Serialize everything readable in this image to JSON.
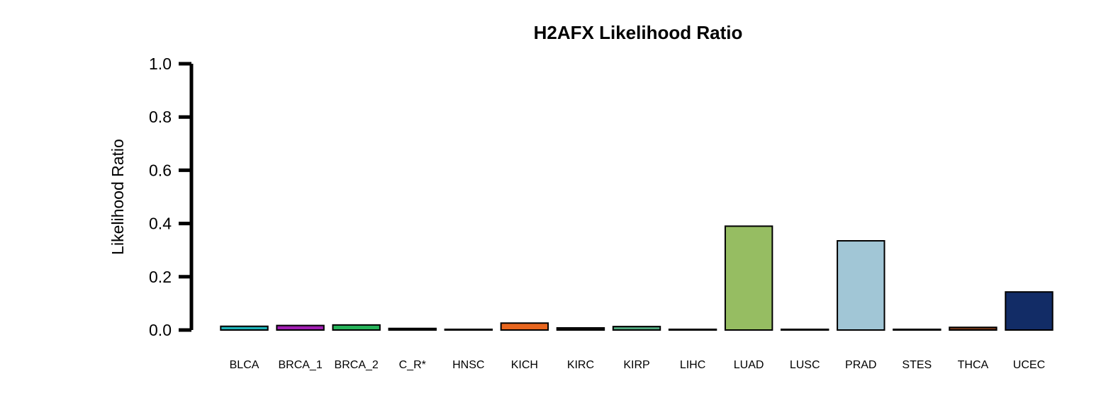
{
  "chart_data": {
    "type": "bar",
    "title": "H2AFX Likelihood Ratio",
    "xlabel": "",
    "ylabel": "Likelihood Ratio",
    "ylim": [
      0,
      1
    ],
    "yticks": [
      "0.0",
      "0.2",
      "0.4",
      "0.6",
      "0.8",
      "1.0"
    ],
    "grid": false,
    "legend": "none",
    "categories": [
      "BLCA",
      "BRCA_1",
      "BRCA_2",
      "C_R*",
      "HNSC",
      "KICH",
      "KIRC",
      "KIRP",
      "LIHC",
      "LUAD",
      "LUSC",
      "PRAD",
      "STES",
      "THCA",
      "UCEC"
    ],
    "values": [
      0.014,
      0.017,
      0.019,
      0.006,
      0.001,
      0.026,
      0.008,
      0.013,
      0.001,
      0.39,
      0.001,
      0.335,
      0.001,
      0.01,
      0.143
    ],
    "colors": [
      "#1fb3b8",
      "#a21fb3",
      "#27b35a",
      "#1a1a1a",
      "#888888",
      "#e8661f",
      "#1a1a1a",
      "#4fa57c",
      "#888888",
      "#96bd62",
      "#888888",
      "#a1c6d6",
      "#888888",
      "#7a3b1c",
      "#122c66"
    ]
  }
}
